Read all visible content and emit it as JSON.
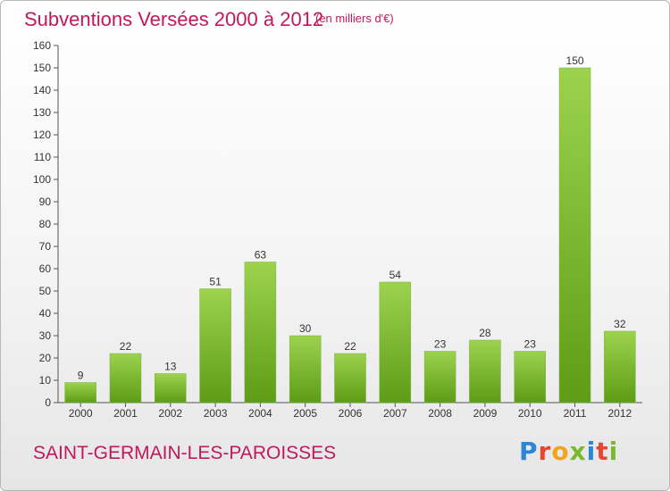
{
  "header": {
    "title": "Subventions Versées 2000 à 2012",
    "subtitle": "(en milliers d'€)"
  },
  "footer": {
    "commune": "SAINT-GERMAIN-LES-PAROISSES",
    "logo_text": "Proxiti",
    "logo_colors": [
      "#2a86d8",
      "#e8462e",
      "#f2a51a",
      "#7ab82f",
      "#2a86d8",
      "#e8462e",
      "#7ab82f"
    ]
  },
  "colors": {
    "bar_light": "#9cd34e",
    "bar_dark": "#5e9c16",
    "title": "#c2185b"
  },
  "chart_data": {
    "type": "bar",
    "title": "Subventions Versées 2000 à 2012",
    "subtitle": "(en milliers d'€)",
    "categories": [
      "2000",
      "2001",
      "2002",
      "2003",
      "2004",
      "2005",
      "2006",
      "2007",
      "2008",
      "2009",
      "2010",
      "2011",
      "2012"
    ],
    "values": [
      9,
      22,
      13,
      51,
      63,
      30,
      22,
      54,
      23,
      28,
      23,
      150,
      32
    ],
    "ylim": [
      0,
      160
    ],
    "yticks": [
      0,
      10,
      20,
      30,
      40,
      50,
      60,
      70,
      80,
      90,
      100,
      110,
      120,
      130,
      140,
      150,
      160
    ],
    "grid": false,
    "data_labels": true
  }
}
